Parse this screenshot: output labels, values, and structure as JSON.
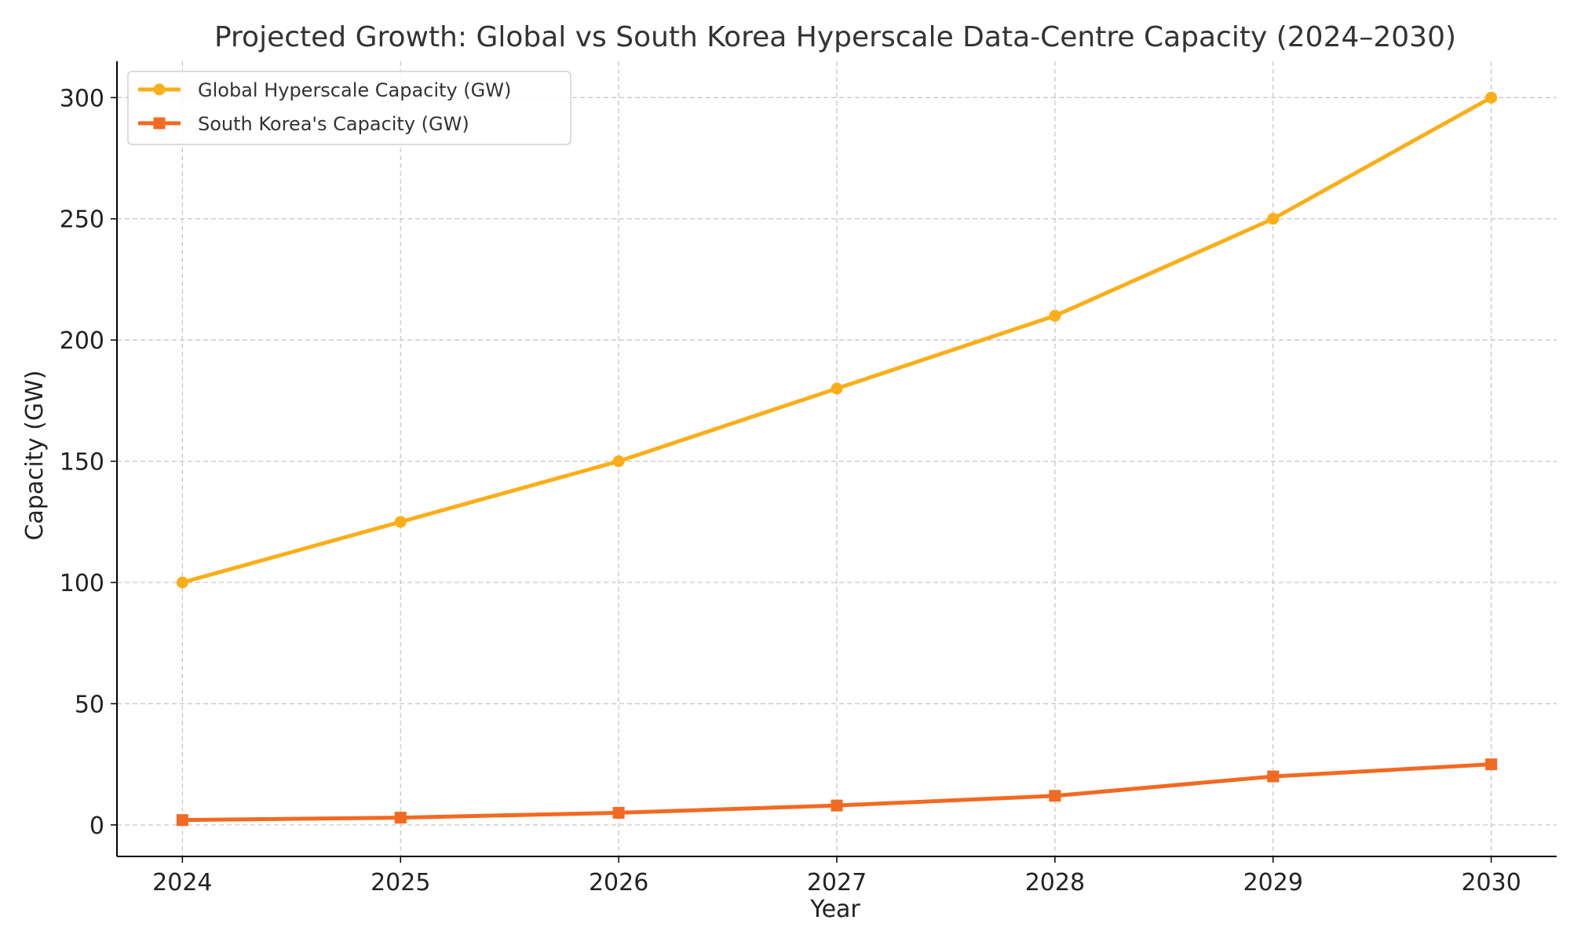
{
  "chart_data": {
    "type": "line",
    "title": "Projected Growth: Global vs South Korea Hyperscale Data-Centre Capacity (2024–2030)",
    "xlabel": "Year",
    "ylabel": "Capacity (GW)",
    "x": [
      2024,
      2025,
      2026,
      2027,
      2028,
      2029,
      2030
    ],
    "x_tick_labels": [
      "2024",
      "2025",
      "2026",
      "2027",
      "2028",
      "2029",
      "2030"
    ],
    "xlim": [
      2023.7,
      2030.3
    ],
    "ylim": [
      -13,
      315
    ],
    "y_ticks": [
      0,
      50,
      100,
      150,
      200,
      250,
      300
    ],
    "y_tick_labels": [
      "0",
      "50",
      "100",
      "150",
      "200",
      "250",
      "300"
    ],
    "grid": true,
    "legend_position": "top-left",
    "series": [
      {
        "name": "Global Hyperscale Capacity (GW)",
        "values": [
          100,
          125,
          150,
          180,
          210,
          250,
          300
        ],
        "color": "#FBAE17",
        "marker": "circle"
      },
      {
        "name": "South Korea's Capacity (GW)",
        "values": [
          2,
          3,
          5,
          8,
          12,
          20,
          25
        ],
        "color": "#F26A21",
        "marker": "square"
      }
    ]
  }
}
